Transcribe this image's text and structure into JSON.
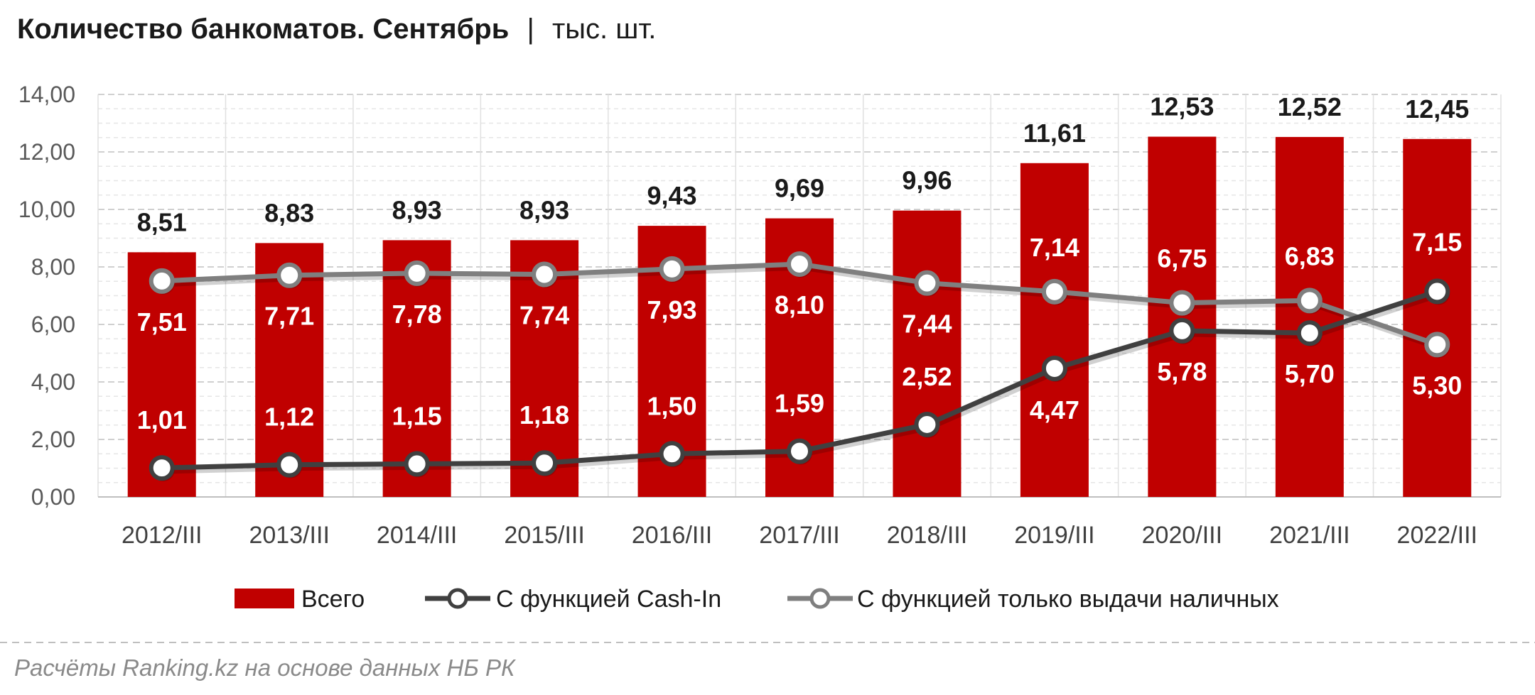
{
  "header": {
    "title_main": "Количество банкоматов. Сентябрь",
    "title_sep": "|",
    "title_unit": "тыс. шт."
  },
  "chart_data": {
    "type": "bar",
    "categories": [
      "2012/III",
      "2013/III",
      "2014/III",
      "2015/III",
      "2016/III",
      "2017/III",
      "2018/III",
      "2019/III",
      "2020/III",
      "2021/III",
      "2022/III"
    ],
    "yticks": [
      "0,00",
      "2,00",
      "4,00",
      "6,00",
      "8,00",
      "10,00",
      "12,00",
      "14,00"
    ],
    "ylim": [
      0,
      14
    ],
    "grid": true,
    "legend_position": "bottom",
    "series": [
      {
        "name": "Всего",
        "kind": "bar",
        "color": "#c00000",
        "values": [
          8.51,
          8.83,
          8.93,
          8.93,
          9.43,
          9.69,
          9.96,
          11.61,
          12.53,
          12.52,
          12.45
        ],
        "labels": [
          "8,51",
          "8,83",
          "8,93",
          "8,93",
          "9,43",
          "9,69",
          "9,96",
          "11,61",
          "12,53",
          "12,52",
          "12,45"
        ]
      },
      {
        "name": "С функцией Cash-In",
        "kind": "line",
        "color": "#404040",
        "values": [
          1.01,
          1.12,
          1.15,
          1.18,
          1.5,
          1.59,
          2.52,
          4.47,
          5.78,
          5.7,
          7.15
        ],
        "labels": [
          "1,01",
          "1,12",
          "1,15",
          "1,18",
          "1,50",
          "1,59",
          "2,52",
          "4,47",
          "5,78",
          "5,70",
          "7,15"
        ]
      },
      {
        "name": "С функцией только выдачи наличных",
        "kind": "line",
        "color": "#7f7f7f",
        "values": [
          7.51,
          7.71,
          7.78,
          7.74,
          7.93,
          8.1,
          7.44,
          7.14,
          6.75,
          6.83,
          5.3
        ],
        "labels": [
          "7,51",
          "7,71",
          "7,78",
          "7,74",
          "7,93",
          "8,10",
          "7,44",
          "7,14",
          "6,75",
          "6,83",
          "5,30"
        ]
      }
    ]
  },
  "footer": {
    "source": "Расчёты Ranking.kz на основе данных НБ РК"
  }
}
